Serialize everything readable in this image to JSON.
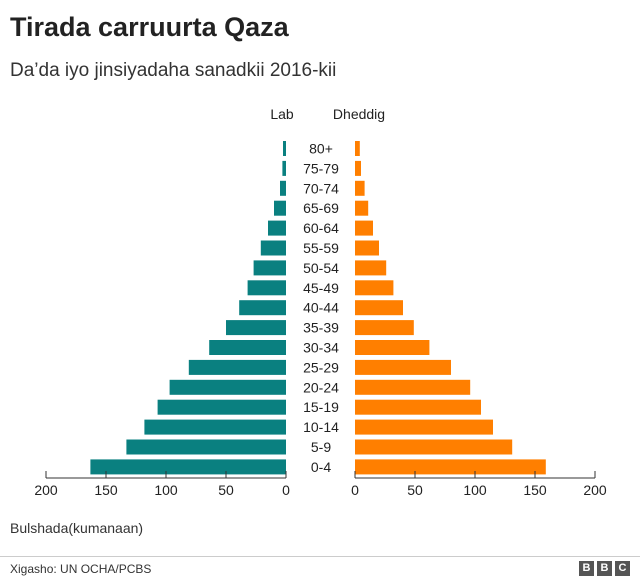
{
  "title": "Tirada carruurta Qaza",
  "subtitle": "Da’da iyo jinsiyadaha sanadkii 2016-kii",
  "note": "Bulshada(kumanaan)",
  "source": "Xigasho: UN OCHA/PCBS",
  "brand": [
    "B",
    "B",
    "C"
  ],
  "colors": {
    "male": "#0a8080",
    "female": "#ff7f00",
    "axis": "#333333",
    "text": "#222222"
  },
  "chart_data": {
    "type": "bar",
    "orientation": "horizontal-population-pyramid",
    "unit": "thousands",
    "xlim": [
      0,
      200
    ],
    "ticks": [
      0,
      50,
      100,
      150,
      200
    ],
    "categories": [
      "80+",
      "75-79",
      "70-74",
      "65-69",
      "60-64",
      "55-59",
      "50-54",
      "45-49",
      "40-44",
      "35-39",
      "30-34",
      "25-29",
      "20-24",
      "15-19",
      "10-14",
      "5-9",
      "0-4"
    ],
    "series": [
      {
        "name": "Lab",
        "side": "left",
        "values": [
          2.5,
          3,
          5,
          10,
          15,
          21,
          27,
          32,
          39,
          50,
          64,
          81,
          97,
          107,
          118,
          133,
          163
        ]
      },
      {
        "name": "Dheddig",
        "side": "right",
        "values": [
          4,
          5,
          8,
          11,
          15,
          20,
          26,
          32,
          40,
          49,
          62,
          80,
          96,
          105,
          115,
          131,
          159
        ]
      }
    ]
  }
}
